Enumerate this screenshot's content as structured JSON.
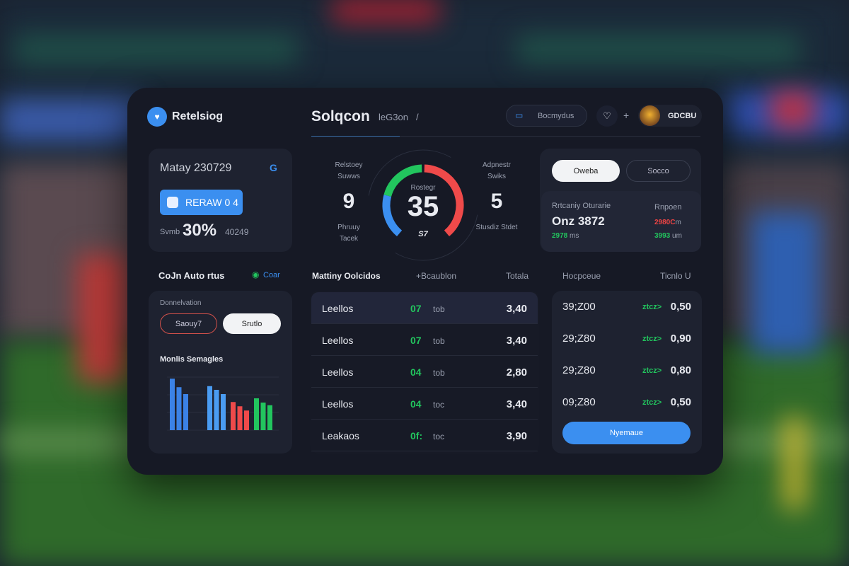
{
  "brand": {
    "name": "Retelsiog"
  },
  "header": {
    "title": "Solqcon",
    "subtitle": "leG3on",
    "separator": "/",
    "search_label": "Bocmydus",
    "plus": "+",
    "user": "GDCBU"
  },
  "account": {
    "title": "Matay 230729",
    "button": "RERAW 0 4",
    "prefix": "Svmb",
    "percent": "30%",
    "suffix": "40249"
  },
  "section": {
    "title": "CoJn Auto rtus",
    "link": "Coar"
  },
  "filter_card": {
    "label": "Donnelvation",
    "pill_left": "Saouy7",
    "pill_right": "Srutlo",
    "chart_title": "Monlis Semagles"
  },
  "gauge": {
    "label": "Rostegr",
    "value": "35",
    "foot": "S7",
    "fill_fraction": 0.75,
    "left": {
      "label_top": "Relstoey Suwws",
      "value": "9",
      "label_bottom": "Phruuy Tacek"
    },
    "right": {
      "label_top": "Adpnestr Swiks",
      "value": "5",
      "label_bottom": "Stusdiz Stdet"
    }
  },
  "right_card": {
    "pill_active": "Oweba",
    "pill_inactive": "Socco",
    "stat_label": "Rrtcaniy Oturarie",
    "stat_value": "Onz 3872",
    "stat_sub": "2978",
    "stat_sub_unit": "ms",
    "side_label": "Rnpoen",
    "side_red": "2980C",
    "side_red_unit": "m",
    "side_green": "3993",
    "side_green_unit": "um"
  },
  "table": {
    "headers": [
      "Mattiny Oolcidos",
      "+Bcaublon",
      "Totala",
      "Hocpceue",
      "Ticnlo U"
    ],
    "rows": [
      {
        "name": "Leellos",
        "code": "07",
        "unit": "tob",
        "total": "3,40"
      },
      {
        "name": "Leellos",
        "code": "07",
        "unit": "tob",
        "total": "3,40"
      },
      {
        "name": "Leellos",
        "code": "04",
        "unit": "tob",
        "total": "2,80"
      },
      {
        "name": "Leellos",
        "code": "04",
        "unit": "toc",
        "total": "3,40"
      },
      {
        "name": "Leakaos",
        "code": "0f:",
        "unit": "toc",
        "total": "3,90"
      }
    ]
  },
  "odds": {
    "rows": [
      {
        "value": "39;Z00",
        "trend": "ztcz>",
        "odd": "0,50"
      },
      {
        "value": "29;Z80",
        "trend": "ztcz>",
        "odd": "0,90"
      },
      {
        "value": "29;Z80",
        "trend": "ztcz>",
        "odd": "0,80"
      },
      {
        "value": "09;Z80",
        "trend": "ztcz>",
        "odd": "0,50"
      }
    ],
    "button": "Nyemaue"
  },
  "colors": {
    "accent": "#3b8ff0",
    "green": "#22c55e",
    "red": "#ef4444",
    "panel": "#161925"
  },
  "chart_data": {
    "type": "bar",
    "title": "Monlis Semagles",
    "ylim": [
      0,
      100
    ],
    "grid": true,
    "series": [
      {
        "color": "#3b82e6",
        "values": [
          97,
          81,
          68
        ]
      },
      {
        "color": "#4a9cf2",
        "values": [
          83,
          76,
          68
        ]
      },
      {
        "color": "#ef4a4a",
        "values": [
          53,
          45,
          37
        ]
      },
      {
        "color": "#22c55e",
        "values": [
          60,
          52,
          47
        ]
      }
    ]
  }
}
